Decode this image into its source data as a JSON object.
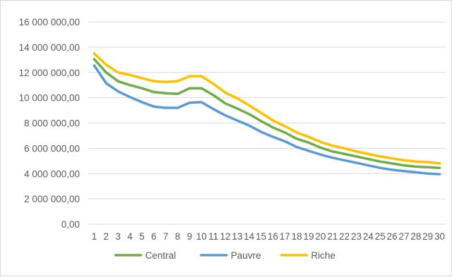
{
  "chart_data": {
    "type": "line",
    "title": "",
    "xlabel": "",
    "ylabel": "",
    "categories": [
      "1",
      "2",
      "3",
      "4",
      "5",
      "6",
      "7",
      "8",
      "9",
      "10",
      "11",
      "12",
      "13",
      "14",
      "15",
      "16",
      "17",
      "18",
      "19",
      "20",
      "21",
      "22",
      "23",
      "24",
      "25",
      "26",
      "27",
      "28",
      "29",
      "30"
    ],
    "ylim": [
      0,
      16000000
    ],
    "yticks": [
      0,
      2000000,
      4000000,
      6000000,
      8000000,
      10000000,
      12000000,
      14000000,
      16000000
    ],
    "ytick_labels": [
      "0,00",
      "2 000 000,00",
      "4 000 000,00",
      "6 000 000,00",
      "8 000 000,00",
      "10 000 000,00",
      "12 000 000,00",
      "14 000 000,00",
      "16 000 000,00"
    ],
    "grid": true,
    "legend_position": "bottom",
    "series": [
      {
        "name": "Central",
        "color": "#70ad47",
        "values": [
          13050000,
          12000000,
          11300000,
          11000000,
          10750000,
          10450000,
          10350000,
          10300000,
          10750000,
          10750000,
          10200000,
          9550000,
          9150000,
          8700000,
          8150000,
          7650000,
          7250000,
          6750000,
          6450000,
          6050000,
          5750000,
          5550000,
          5350000,
          5150000,
          4950000,
          4800000,
          4650000,
          4550000,
          4500000,
          4450000
        ]
      },
      {
        "name": "Pauvre",
        "color": "#5b9bd5",
        "values": [
          12550000,
          11150000,
          10500000,
          10050000,
          9650000,
          9300000,
          9200000,
          9200000,
          9600000,
          9650000,
          9100000,
          8600000,
          8200000,
          7800000,
          7300000,
          6900000,
          6550000,
          6100000,
          5800000,
          5500000,
          5250000,
          5050000,
          4850000,
          4650000,
          4450000,
          4300000,
          4200000,
          4100000,
          4000000,
          3950000
        ]
      },
      {
        "name": "Riche",
        "color": "#ffc000",
        "values": [
          13500000,
          12600000,
          12000000,
          11800000,
          11550000,
          11300000,
          11250000,
          11300000,
          11700000,
          11700000,
          11100000,
          10400000,
          9950000,
          9400000,
          8800000,
          8200000,
          7750000,
          7250000,
          6900000,
          6500000,
          6200000,
          6000000,
          5750000,
          5550000,
          5350000,
          5200000,
          5050000,
          4950000,
          4900000,
          4800000
        ]
      }
    ]
  }
}
